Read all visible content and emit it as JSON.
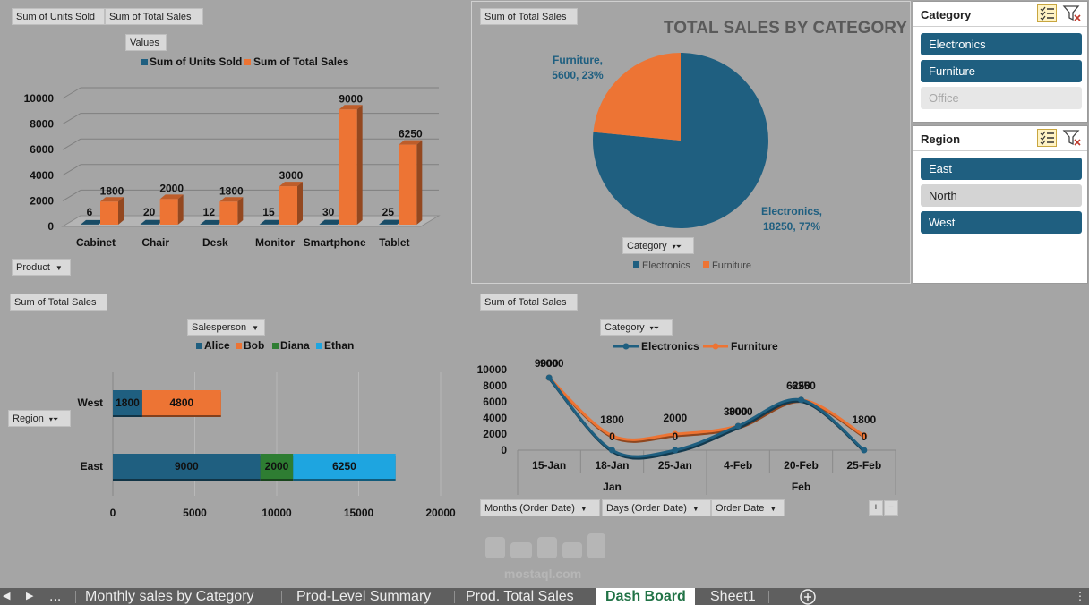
{
  "colors": {
    "electronics": "#1f5f80",
    "furniture": "#ed7434",
    "alice": "#1f5f80",
    "bob": "#ed7434",
    "diana": "#2e7d32",
    "ethan": "#1ea5e0",
    "background": "#a5a5a5",
    "active_tab": "#217346"
  },
  "product_chart": {
    "field_buttons": {
      "units": "Sum of Units Sold",
      "sales": "Sum of Total Sales",
      "values": "Values",
      "product": "Product"
    },
    "chart_data": {
      "type": "bar",
      "categories": [
        "Cabinet",
        "Chair",
        "Desk",
        "Monitor",
        "Smartphone",
        "Tablet"
      ],
      "series": [
        {
          "name": "Sum of Units Sold",
          "values": [
            6,
            20,
            12,
            15,
            30,
            25
          ]
        },
        {
          "name": "Sum of Total Sales",
          "values": [
            1800,
            2000,
            1800,
            3000,
            9000,
            6250
          ]
        }
      ],
      "yticks": [
        "0",
        "2000",
        "4000",
        "6000",
        "8000",
        "10000"
      ],
      "ylim": [
        0,
        10000
      ],
      "legend": "top",
      "grid": true
    }
  },
  "pie_chart": {
    "field_buttons": {
      "sales": "Sum of Total Sales",
      "category": "Category"
    },
    "chart_data": {
      "type": "pie",
      "title": "TOTAL SALES BY CATEGORY",
      "categories": [
        "Electronics",
        "Furniture"
      ],
      "values": [
        18250,
        5600
      ],
      "labels": {
        "furniture_line1": "Furniture,",
        "furniture_line2": "5600, 23%",
        "electronics_line1": "Electronics,",
        "electronics_line2": "18250, 77%"
      },
      "legend": "bottom"
    }
  },
  "slicer_category": {
    "title": "Category",
    "items": [
      {
        "label": "Electronics",
        "state": "selected"
      },
      {
        "label": "Furniture",
        "state": "selected"
      },
      {
        "label": "Office",
        "state": "nodata"
      }
    ]
  },
  "slicer_region": {
    "title": "Region",
    "items": [
      {
        "label": "East",
        "state": "selected"
      },
      {
        "label": "North",
        "state": "unselected"
      },
      {
        "label": "West",
        "state": "selected"
      }
    ]
  },
  "region_chart": {
    "field_buttons": {
      "sales": "Sum of Total Sales",
      "salesperson": "Salesperson",
      "region": "Region"
    },
    "chart_data": {
      "type": "bar",
      "orientation": "horizontal-stacked",
      "categories": [
        "West",
        "East"
      ],
      "series": [
        {
          "name": "Alice",
          "values": [
            1800,
            9000
          ]
        },
        {
          "name": "Bob",
          "values": [
            4800,
            0
          ]
        },
        {
          "name": "Diana",
          "values": [
            0,
            2000
          ]
        },
        {
          "name": "Ethan",
          "values": [
            0,
            6250
          ]
        }
      ],
      "xticks": [
        "0",
        "5000",
        "10000",
        "15000",
        "20000"
      ],
      "xlim": [
        0,
        20000
      ],
      "legend": "top"
    }
  },
  "line_chart": {
    "field_buttons": {
      "sales": "Sum of Total Sales",
      "category": "Category",
      "months": "Months (Order Date)",
      "days": "Days (Order Date)",
      "orderdate": "Order Date",
      "plus": "+",
      "minus": "−"
    },
    "chart_data": {
      "type": "line",
      "x": [
        "15-Jan",
        "18-Jan",
        "25-Jan",
        "4-Feb",
        "20-Feb",
        "25-Feb"
      ],
      "groups": [
        "Jan",
        "Feb"
      ],
      "series": [
        {
          "name": "Electronics",
          "values": [
            9000,
            0,
            0,
            3000,
            6250,
            0
          ]
        },
        {
          "name": "Furniture",
          "values": [
            9000,
            1800,
            2000,
            3000,
            6250,
            1800
          ]
        }
      ],
      "labels_electronics": [
        "9000",
        "0",
        "0",
        "3000",
        "6250",
        "0"
      ],
      "labels_furniture": [
        "9000",
        "1800",
        "2000",
        "3000",
        "6250",
        "1800"
      ],
      "yticks": [
        "0",
        "2000",
        "4000",
        "6000",
        "8000",
        "10000"
      ],
      "ylim": [
        0,
        10000
      ],
      "legend": "top"
    }
  },
  "watermark": "mostaql.com",
  "tabs": {
    "more": "...",
    "items": [
      "Monthly sales by Category",
      "Prod-Level Summary",
      "Prod. Total Sales",
      "Dash Board",
      "Sheet1"
    ],
    "active": "Dash Board"
  }
}
